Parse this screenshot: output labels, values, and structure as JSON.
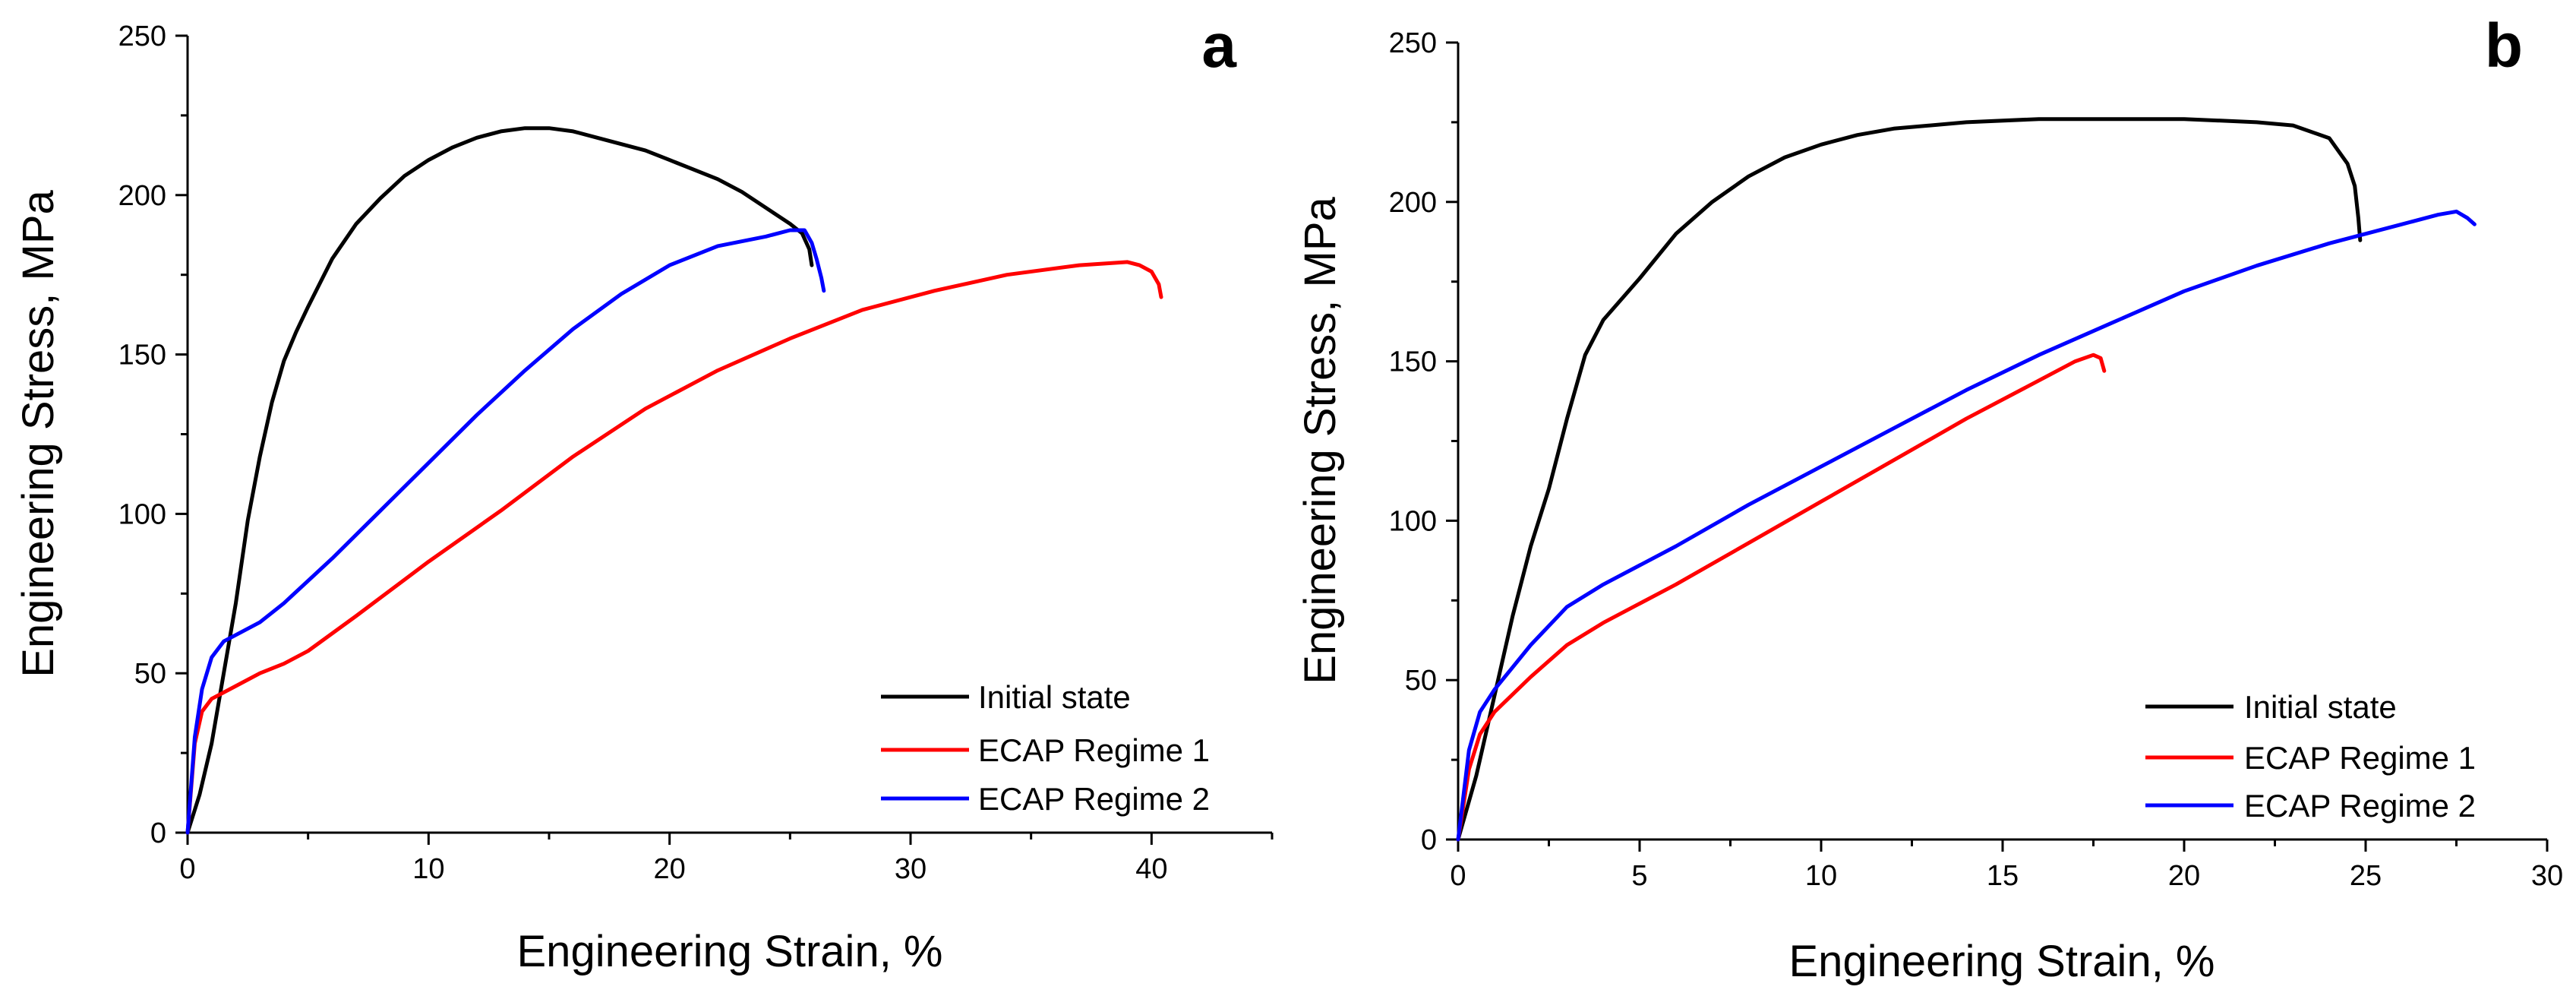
{
  "chart_data": [
    {
      "type": "line",
      "panel_label": "a",
      "xlabel": "Engineering Strain, %",
      "ylabel": "Engineering Stress, MPa",
      "xlim": [
        0,
        45
      ],
      "ylim": [
        0,
        250
      ],
      "xticks": [
        0,
        10,
        20,
        30,
        40
      ],
      "yticks": [
        0,
        50,
        100,
        150,
        200,
        250
      ],
      "legend_position": "bottom-right",
      "series": [
        {
          "name": "Initial state",
          "color": "#000000",
          "x": [
            0,
            0.5,
            1,
            1.5,
            2,
            2.5,
            3,
            3.5,
            4,
            4.5,
            5,
            6,
            7,
            8,
            9,
            10,
            11,
            12,
            13,
            14,
            15,
            16,
            17,
            18,
            19,
            20,
            21,
            22,
            23,
            24,
            25,
            25.5,
            25.8,
            25.9
          ],
          "y": [
            0,
            12,
            28,
            50,
            72,
            98,
            118,
            135,
            148,
            157,
            165,
            180,
            191,
            199,
            206,
            211,
            215,
            218,
            220,
            221,
            221,
            220,
            218,
            216,
            214,
            211,
            208,
            205,
            201,
            196,
            191,
            188,
            183,
            178
          ]
        },
        {
          "name": "ECAP Regime 1",
          "color": "#ff0000",
          "x": [
            0,
            0.3,
            0.6,
            1,
            2,
            3,
            4,
            5,
            7,
            10,
            13,
            16,
            19,
            22,
            25,
            28,
            31,
            34,
            37,
            39,
            39.5,
            40,
            40.3,
            40.4
          ],
          "y": [
            0,
            28,
            38,
            42,
            46,
            50,
            53,
            57,
            68,
            85,
            101,
            118,
            133,
            145,
            155,
            164,
            170,
            175,
            178,
            179,
            178,
            176,
            172,
            168
          ]
        },
        {
          "name": "ECAP Regime 2",
          "color": "#0000ff",
          "x": [
            0,
            0.3,
            0.6,
            1,
            1.5,
            2,
            3,
            4,
            6,
            8,
            10,
            12,
            14,
            16,
            18,
            20,
            22,
            24,
            25,
            25.6,
            25.9,
            26.1,
            26.3,
            26.4
          ],
          "y": [
            0,
            30,
            45,
            55,
            60,
            62,
            66,
            72,
            86,
            101,
            116,
            131,
            145,
            158,
            169,
            178,
            184,
            187,
            189,
            189,
            185,
            180,
            174,
            170
          ]
        }
      ]
    },
    {
      "type": "line",
      "panel_label": "b",
      "xlabel": "Engineering Strain, %",
      "ylabel": "Engineering Stress, MPa",
      "xlim": [
        0,
        30
      ],
      "ylim": [
        0,
        250
      ],
      "xticks": [
        0,
        5,
        10,
        15,
        20,
        25,
        30
      ],
      "yticks": [
        0,
        50,
        100,
        150,
        200,
        250
      ],
      "legend_position": "bottom-right",
      "series": [
        {
          "name": "Initial state",
          "color": "#000000",
          "x": [
            0,
            0.5,
            1,
            1.5,
            2,
            2.5,
            3,
            3.5,
            4,
            5,
            6,
            7,
            8,
            9,
            10,
            11,
            12,
            14,
            16,
            18,
            20,
            22,
            23,
            24,
            24.5,
            24.7,
            24.8,
            24.85
          ],
          "y": [
            0,
            20,
            45,
            70,
            92,
            110,
            132,
            152,
            163,
            176,
            190,
            200,
            208,
            214,
            218,
            221,
            223,
            225,
            226,
            226,
            226,
            225,
            224,
            220,
            212,
            205,
            195,
            188
          ]
        },
        {
          "name": "ECAP Regime 1",
          "color": "#ff0000",
          "x": [
            0,
            0.3,
            0.6,
            1,
            2,
            3,
            4,
            6,
            8,
            10,
            12,
            14,
            16,
            17,
            17.5,
            17.7,
            17.8
          ],
          "y": [
            0,
            22,
            33,
            40,
            51,
            61,
            68,
            80,
            93,
            106,
            119,
            132,
            144,
            150,
            152,
            151,
            147
          ]
        },
        {
          "name": "ECAP Regime 2",
          "color": "#0000ff",
          "x": [
            0,
            0.3,
            0.6,
            1,
            1.5,
            2,
            3,
            4,
            6,
            8,
            10,
            12,
            14,
            16,
            18,
            20,
            22,
            24,
            26,
            27,
            27.5,
            27.8,
            28
          ],
          "y": [
            0,
            28,
            40,
            47,
            54,
            61,
            73,
            80,
            92,
            105,
            117,
            129,
            141,
            152,
            162,
            172,
            180,
            187,
            193,
            196,
            197,
            195,
            193
          ]
        }
      ]
    }
  ]
}
